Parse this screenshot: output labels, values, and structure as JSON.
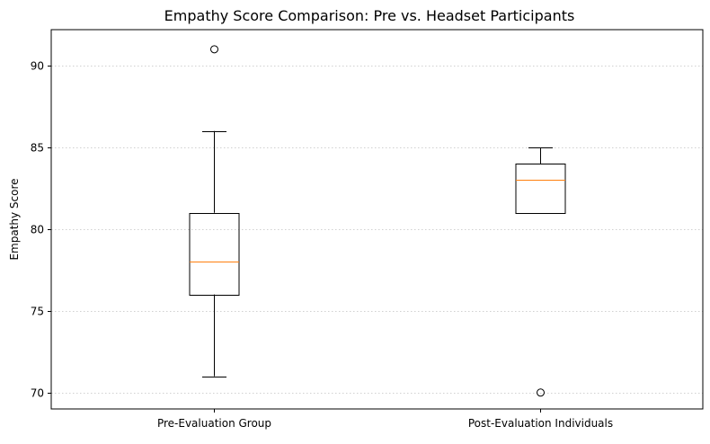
{
  "chart_data": {
    "type": "box",
    "title": "Empathy Score Comparison: Pre vs. Headset Participants",
    "xlabel": "",
    "ylabel": "Empathy Score",
    "ylim": [
      69,
      92.2
    ],
    "yticks": [
      70,
      75,
      80,
      85,
      90
    ],
    "grid": {
      "y": true,
      "x": false,
      "style": "dotted",
      "color": "#d0d0d0"
    },
    "box_color": "#000000",
    "median_color": "#ff7f0e",
    "categories": [
      "Pre-Evaluation Group",
      "Post-Evaluation Individuals"
    ],
    "boxes": [
      {
        "label": "Pre-Evaluation Group",
        "whisker_low": 71,
        "q1": 76,
        "median": 78,
        "q3": 81,
        "whisker_high": 86,
        "outliers": [
          91
        ]
      },
      {
        "label": "Post-Evaluation Individuals",
        "whisker_low": 81,
        "q1": 81,
        "median": 83,
        "q3": 84,
        "whisker_high": 85,
        "outliers": [
          70
        ]
      }
    ]
  }
}
